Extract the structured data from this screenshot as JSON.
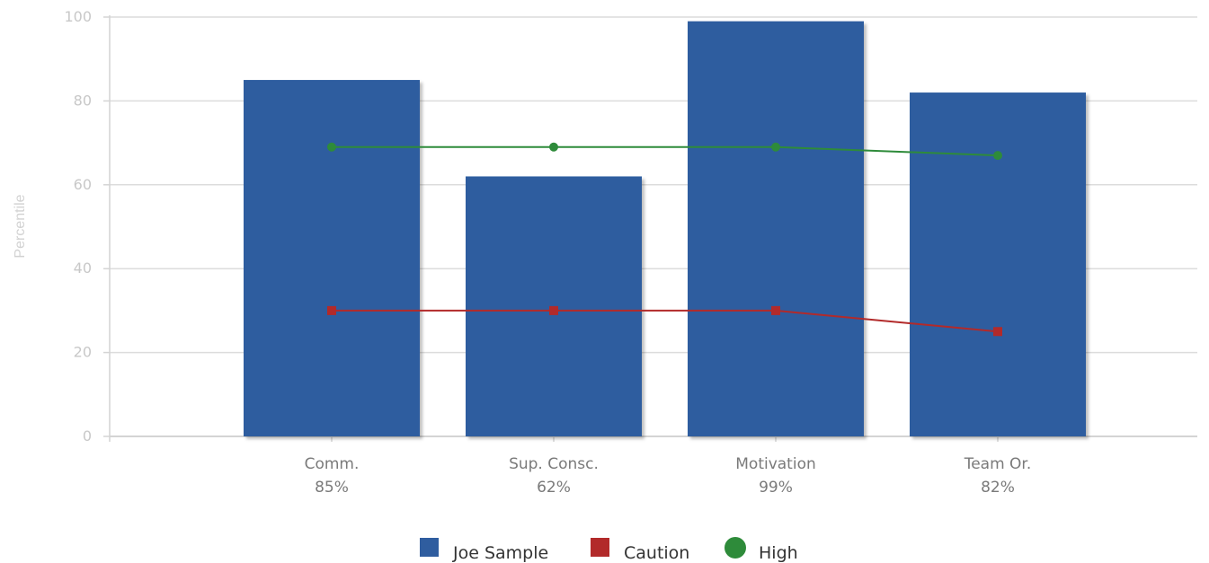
{
  "chart_data": {
    "type": "bar",
    "categories": [
      "Comm.",
      "Sup. Consc.",
      "Motivation",
      "Team Or."
    ],
    "category_value_labels": [
      "85%",
      "62%",
      "99%",
      "82%"
    ],
    "ylabel": "Percentile",
    "xlabel": "",
    "ylim": [
      0,
      100
    ],
    "yticks": [
      0,
      20,
      40,
      60,
      80,
      100
    ],
    "grid": true,
    "legend_position": "bottom-center",
    "series": [
      {
        "name": "Joe Sample",
        "type": "bar",
        "color": "#2f5d9f",
        "values": [
          85,
          62,
          99,
          82
        ]
      },
      {
        "name": "Caution",
        "type": "line",
        "marker": "square",
        "color": "#b22a2a",
        "values": [
          30,
          30,
          30,
          25
        ]
      },
      {
        "name": "High",
        "type": "line",
        "marker": "circle",
        "color": "#2e8b3a",
        "values": [
          69,
          69,
          69,
          67
        ]
      }
    ]
  }
}
